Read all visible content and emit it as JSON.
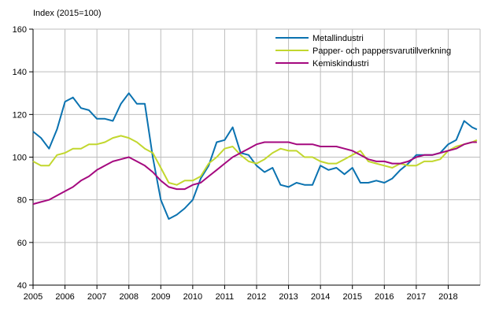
{
  "chart_data": {
    "type": "line",
    "ylabel": "Index (2015=100)",
    "ylim": [
      40,
      160
    ],
    "yticks": [
      40,
      60,
      80,
      100,
      120,
      140,
      160
    ],
    "xlim": [
      2005,
      2019
    ],
    "xticks": [
      "2005",
      "2006",
      "2007",
      "2008",
      "2009",
      "2010",
      "2011",
      "2012",
      "2013",
      "2014",
      "2015",
      "2016",
      "2017",
      "2018"
    ],
    "grid": true,
    "legend_position": "top-right",
    "x": [
      2005.0,
      2005.25,
      2005.5,
      2005.75,
      2006.0,
      2006.25,
      2006.5,
      2006.75,
      2007.0,
      2007.25,
      2007.5,
      2007.75,
      2008.0,
      2008.25,
      2008.5,
      2008.75,
      2009.0,
      2009.25,
      2009.5,
      2009.75,
      2010.0,
      2010.25,
      2010.5,
      2010.75,
      2011.0,
      2011.25,
      2011.5,
      2011.75,
      2012.0,
      2012.25,
      2012.5,
      2012.75,
      2013.0,
      2013.25,
      2013.5,
      2013.75,
      2014.0,
      2014.25,
      2014.5,
      2014.75,
      2015.0,
      2015.25,
      2015.5,
      2015.75,
      2016.0,
      2016.25,
      2016.5,
      2016.75,
      2017.0,
      2017.25,
      2017.5,
      2017.75,
      2018.0,
      2018.25,
      2018.5,
      2018.75,
      2018.9
    ],
    "series": [
      {
        "name": "Metallindustri",
        "color": "#0a72b0",
        "values": [
          112,
          109,
          104,
          113,
          126,
          128,
          123,
          122,
          118,
          118,
          117,
          125,
          130,
          125,
          125,
          100,
          80,
          71,
          73,
          76,
          80,
          90,
          96,
          107,
          108,
          114,
          102,
          101,
          96,
          93,
          95,
          87,
          86,
          88,
          87,
          87,
          96,
          94,
          95,
          92,
          95,
          88,
          88,
          89,
          88,
          90,
          94,
          97,
          101,
          101,
          101,
          102,
          106,
          108,
          117,
          114,
          113
        ]
      },
      {
        "name": "Papper- och pappersvarutillverkning",
        "color": "#c2d72e",
        "values": [
          98,
          96,
          96,
          101,
          102,
          104,
          104,
          106,
          106,
          107,
          109,
          110,
          109,
          107,
          104,
          102,
          95,
          88,
          87,
          89,
          89,
          91,
          97,
          100,
          104,
          105,
          101,
          98,
          97,
          99,
          102,
          104,
          103,
          103,
          100,
          100,
          98,
          97,
          97,
          99,
          101,
          103,
          98,
          97,
          96,
          95,
          97,
          96,
          96,
          98,
          98,
          99,
          103,
          105,
          106,
          107,
          108
        ]
      },
      {
        "name": "Kemiskindustri",
        "color": "#a5097f",
        "values": [
          78,
          79,
          80,
          82,
          84,
          86,
          89,
          91,
          94,
          96,
          98,
          99,
          100,
          98,
          96,
          93,
          89,
          86,
          85,
          85,
          87,
          88,
          91,
          94,
          97,
          100,
          102,
          104,
          106,
          107,
          107,
          107,
          107,
          106,
          106,
          106,
          105,
          105,
          105,
          104,
          103,
          101,
          99,
          98,
          98,
          97,
          97,
          98,
          100,
          101,
          101,
          102,
          103,
          104,
          106,
          107,
          107
        ]
      }
    ]
  }
}
